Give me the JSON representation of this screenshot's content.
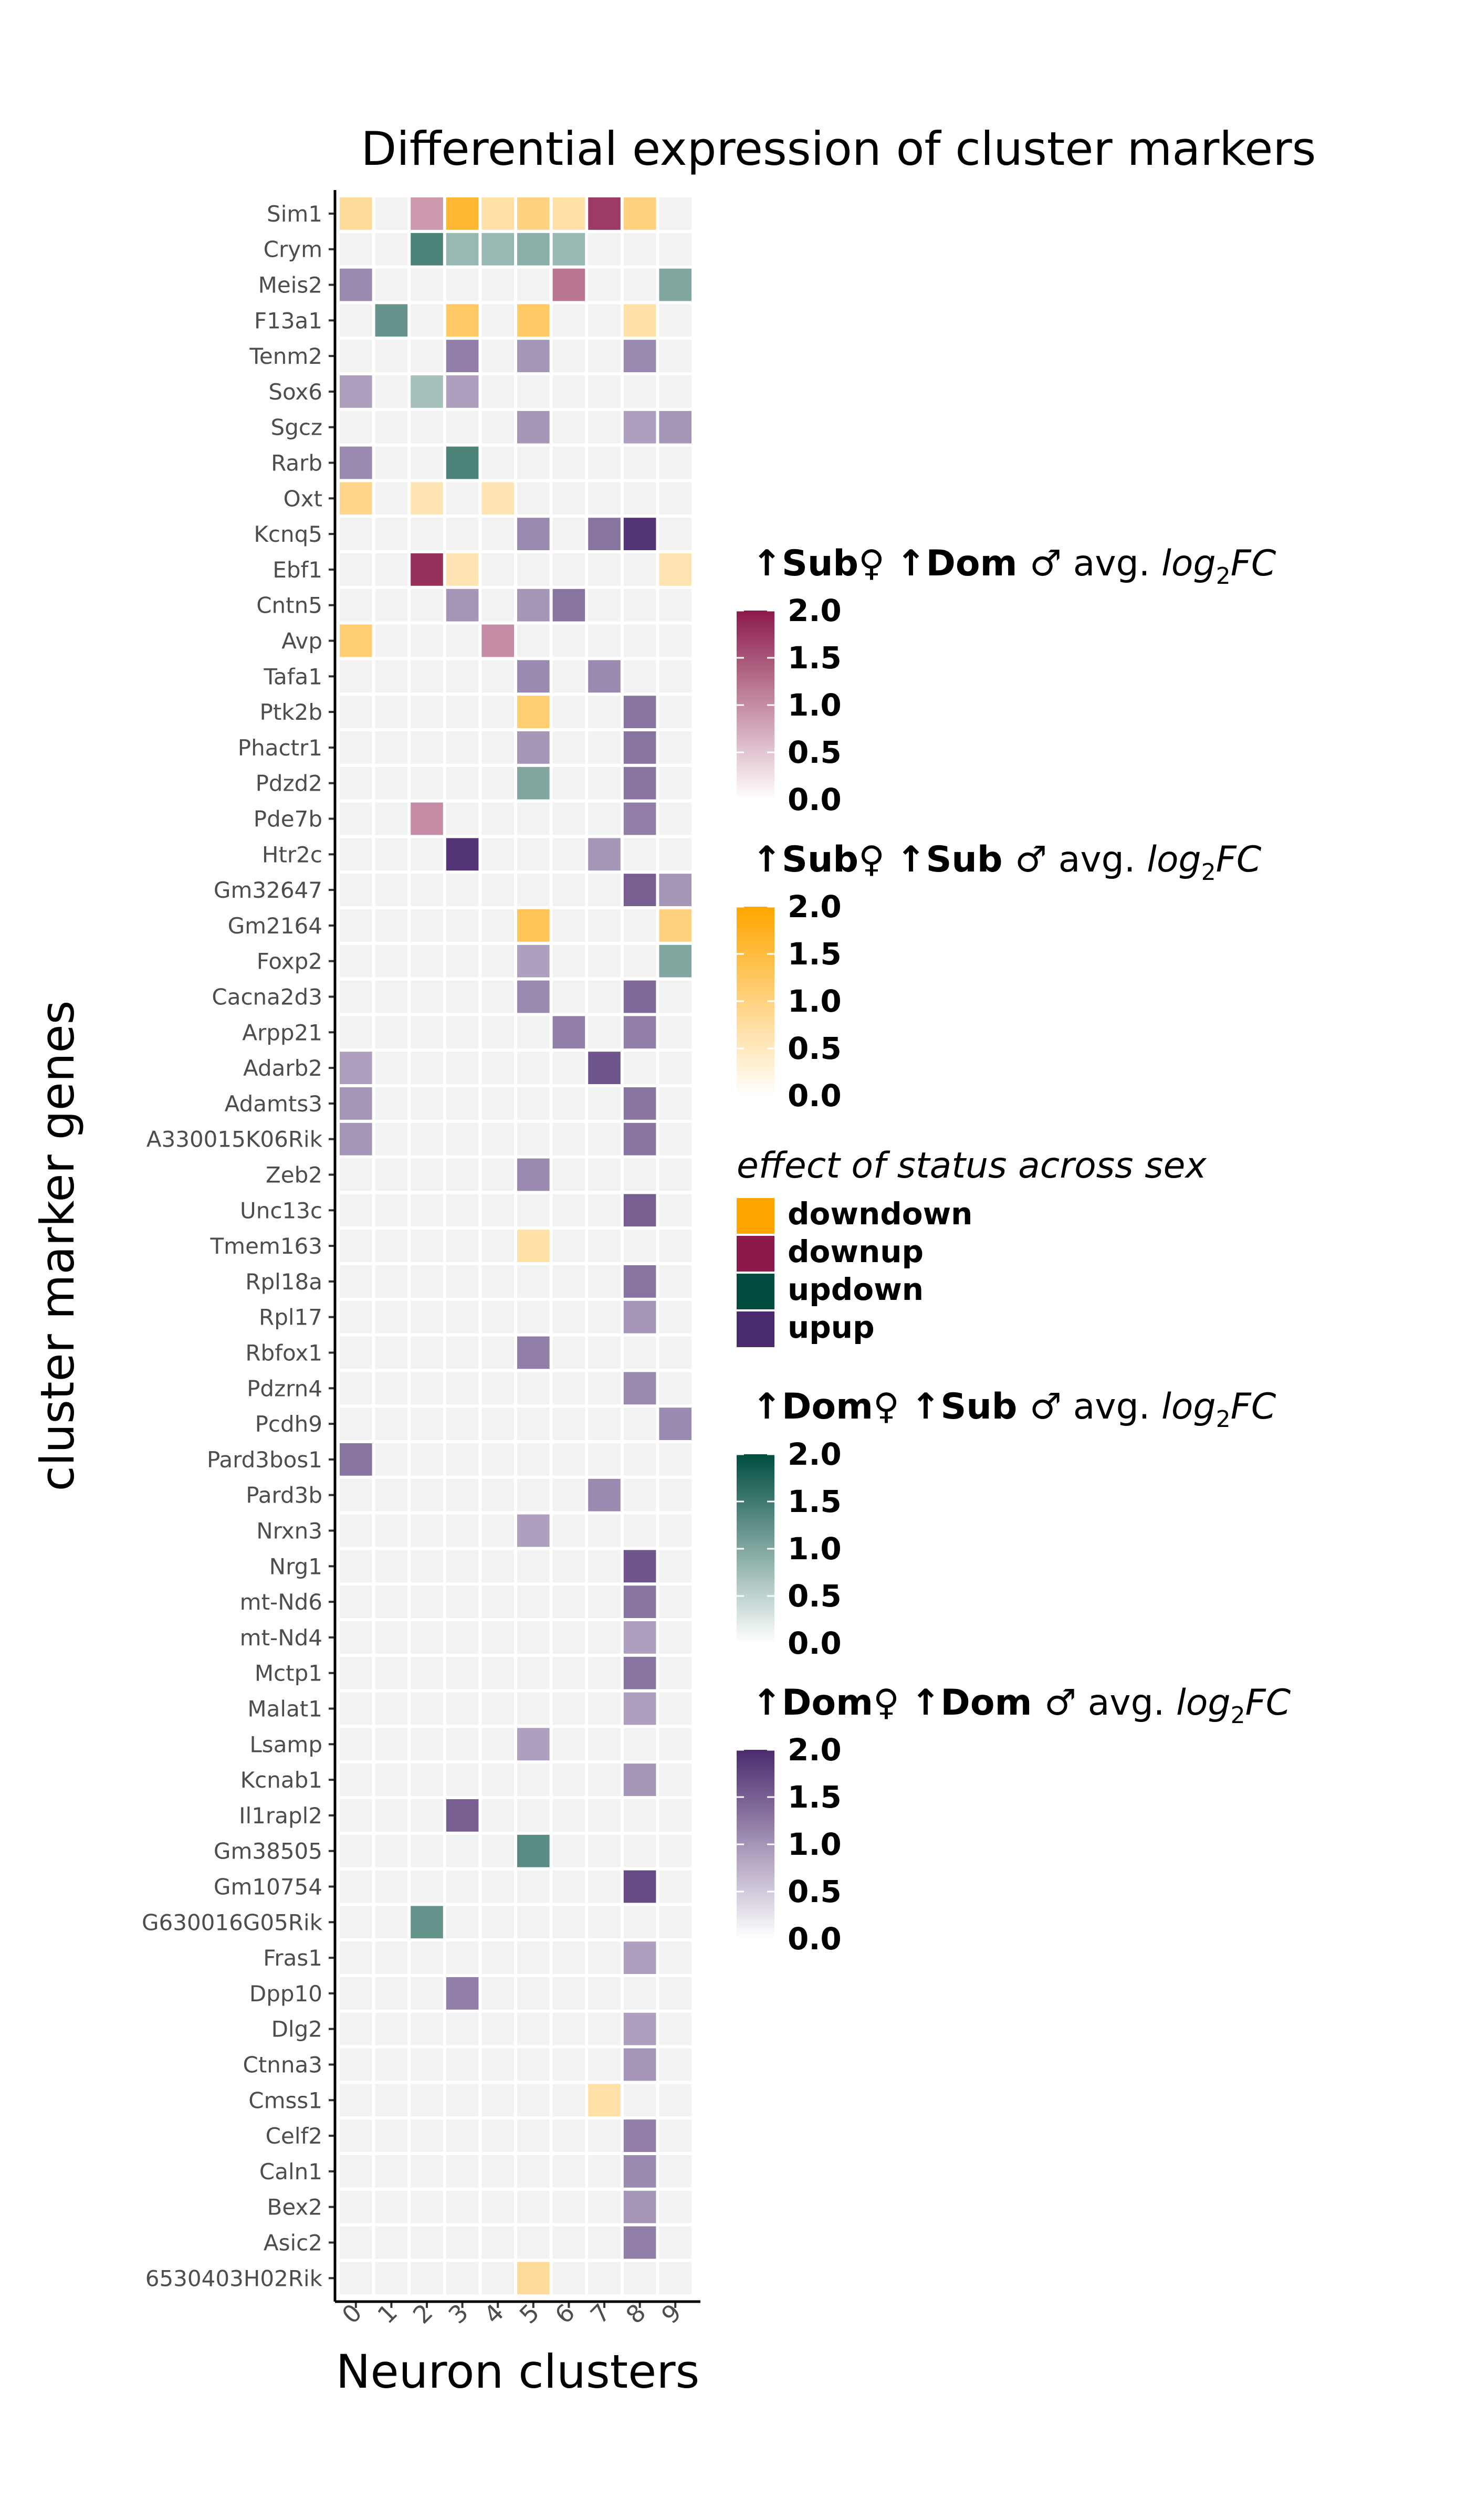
{
  "chart_data": {
    "type": "heatmap",
    "title": "Differential expression of cluster markers",
    "xlabel": "Neuron clusters",
    "ylabel": "cluster marker genes",
    "x_categories": [
      "0",
      "1",
      "2",
      "3",
      "4",
      "5",
      "6",
      "7",
      "8",
      "9"
    ],
    "genes": [
      "Sim1",
      "Crym",
      "Meis2",
      "F13a1",
      "Tenm2",
      "Sox6",
      "Sgcz",
      "Rarb",
      "Oxt",
      "Kcnq5",
      "Ebf1",
      "Cntn5",
      "Avp",
      "Tafa1",
      "Ptk2b",
      "Phactr1",
      "Pdzd2",
      "Pde7b",
      "Htr2c",
      "Gm32647",
      "Gm2164",
      "Foxp2",
      "Cacna2d3",
      "Arpp21",
      "Adarb2",
      "Adamts3",
      "A330015K06Rik",
      "Zeb2",
      "Unc13c",
      "Tmem163",
      "Rpl18a",
      "Rpl17",
      "Rbfox1",
      "Pdzrn4",
      "Pcdh9",
      "Pard3bos1",
      "Pard3b",
      "Nrxn3",
      "Nrg1",
      "mt-Nd6",
      "mt-Nd4",
      "Mctp1",
      "Malat1",
      "Lsamp",
      "Kcnab1",
      "Il1rapl2",
      "Gm38505",
      "Gm10754",
      "G630016G05Rik",
      "Fras1",
      "Dpp10",
      "Dlg2",
      "Ctnna3",
      "Cmss1",
      "Celf2",
      "Caln1",
      "Bex2",
      "Asic2",
      "6530403H02Rik"
    ],
    "background_color": "#f2f2f2",
    "categories": {
      "downup": {
        "color": "#8b1a4a"
      },
      "downdown": {
        "color": "#ffa500"
      },
      "updown": {
        "color": "#004d40"
      },
      "upup": {
        "color": "#4a2a6e"
      }
    },
    "cells": [
      {
        "gene": "Sim1",
        "cluster": "0",
        "effect": "downdown",
        "log2fc": 0.8
      },
      {
        "gene": "Sim1",
        "cluster": "2",
        "effect": "downup",
        "log2fc": 0.9
      },
      {
        "gene": "Sim1",
        "cluster": "3",
        "effect": "downdown",
        "log2fc": 1.6
      },
      {
        "gene": "Sim1",
        "cluster": "4",
        "effect": "downdown",
        "log2fc": 0.7
      },
      {
        "gene": "Sim1",
        "cluster": "5",
        "effect": "downdown",
        "log2fc": 1.0
      },
      {
        "gene": "Sim1",
        "cluster": "6",
        "effect": "downdown",
        "log2fc": 0.7
      },
      {
        "gene": "Sim1",
        "cluster": "7",
        "effect": "downup",
        "log2fc": 1.7
      },
      {
        "gene": "Sim1",
        "cluster": "8",
        "effect": "downdown",
        "log2fc": 1.0
      },
      {
        "gene": "Crym",
        "cluster": "2",
        "effect": "updown",
        "log2fc": 1.4
      },
      {
        "gene": "Crym",
        "cluster": "3",
        "effect": "updown",
        "log2fc": 0.8
      },
      {
        "gene": "Crym",
        "cluster": "4",
        "effect": "updown",
        "log2fc": 0.8
      },
      {
        "gene": "Crym",
        "cluster": "5",
        "effect": "updown",
        "log2fc": 0.9
      },
      {
        "gene": "Crym",
        "cluster": "6",
        "effect": "updown",
        "log2fc": 0.8
      },
      {
        "gene": "Meis2",
        "cluster": "0",
        "effect": "upup",
        "log2fc": 1.1
      },
      {
        "gene": "Meis2",
        "cluster": "6",
        "effect": "downup",
        "log2fc": 1.2
      },
      {
        "gene": "Meis2",
        "cluster": "9",
        "effect": "updown",
        "log2fc": 1.0
      },
      {
        "gene": "F13a1",
        "cluster": "1",
        "effect": "updown",
        "log2fc": 1.2
      },
      {
        "gene": "F13a1",
        "cluster": "3",
        "effect": "downdown",
        "log2fc": 1.2
      },
      {
        "gene": "F13a1",
        "cluster": "5",
        "effect": "downdown",
        "log2fc": 1.2
      },
      {
        "gene": "F13a1",
        "cluster": "8",
        "effect": "downdown",
        "log2fc": 0.7
      },
      {
        "gene": "Tenm2",
        "cluster": "3",
        "effect": "upup",
        "log2fc": 1.2
      },
      {
        "gene": "Tenm2",
        "cluster": "5",
        "effect": "upup",
        "log2fc": 1.0
      },
      {
        "gene": "Tenm2",
        "cluster": "8",
        "effect": "upup",
        "log2fc": 1.1
      },
      {
        "gene": "Sox6",
        "cluster": "0",
        "effect": "upup",
        "log2fc": 0.9
      },
      {
        "gene": "Sox6",
        "cluster": "2",
        "effect": "updown",
        "log2fc": 0.7
      },
      {
        "gene": "Sox6",
        "cluster": "3",
        "effect": "upup",
        "log2fc": 0.9
      },
      {
        "gene": "Sgcz",
        "cluster": "5",
        "effect": "upup",
        "log2fc": 1.0
      },
      {
        "gene": "Sgcz",
        "cluster": "8",
        "effect": "upup",
        "log2fc": 0.9
      },
      {
        "gene": "Sgcz",
        "cluster": "9",
        "effect": "upup",
        "log2fc": 1.0
      },
      {
        "gene": "Rarb",
        "cluster": "0",
        "effect": "upup",
        "log2fc": 1.1
      },
      {
        "gene": "Rarb",
        "cluster": "3",
        "effect": "updown",
        "log2fc": 1.4
      },
      {
        "gene": "Oxt",
        "cluster": "0",
        "effect": "downdown",
        "log2fc": 0.9
      },
      {
        "gene": "Oxt",
        "cluster": "2",
        "effect": "downdown",
        "log2fc": 0.6
      },
      {
        "gene": "Oxt",
        "cluster": "4",
        "effect": "downdown",
        "log2fc": 0.6
      },
      {
        "gene": "Kcnq5",
        "cluster": "5",
        "effect": "upup",
        "log2fc": 1.1
      },
      {
        "gene": "Kcnq5",
        "cluster": "7",
        "effect": "upup",
        "log2fc": 1.3
      },
      {
        "gene": "Kcnq5",
        "cluster": "8",
        "effect": "upup",
        "log2fc": 1.9
      },
      {
        "gene": "Ebf1",
        "cluster": "2",
        "effect": "downup",
        "log2fc": 1.8
      },
      {
        "gene": "Ebf1",
        "cluster": "3",
        "effect": "downdown",
        "log2fc": 0.6
      },
      {
        "gene": "Ebf1",
        "cluster": "9",
        "effect": "downdown",
        "log2fc": 0.6
      },
      {
        "gene": "Cntn5",
        "cluster": "3",
        "effect": "upup",
        "log2fc": 1.0
      },
      {
        "gene": "Cntn5",
        "cluster": "5",
        "effect": "upup",
        "log2fc": 1.0
      },
      {
        "gene": "Cntn5",
        "cluster": "6",
        "effect": "upup",
        "log2fc": 1.3
      },
      {
        "gene": "Avp",
        "cluster": "0",
        "effect": "downdown",
        "log2fc": 1.1
      },
      {
        "gene": "Avp",
        "cluster": "4",
        "effect": "downup",
        "log2fc": 1.0
      },
      {
        "gene": "Tafa1",
        "cluster": "5",
        "effect": "upup",
        "log2fc": 1.1
      },
      {
        "gene": "Tafa1",
        "cluster": "7",
        "effect": "upup",
        "log2fc": 1.1
      },
      {
        "gene": "Ptk2b",
        "cluster": "5",
        "effect": "downdown",
        "log2fc": 1.1
      },
      {
        "gene": "Ptk2b",
        "cluster": "8",
        "effect": "upup",
        "log2fc": 1.3
      },
      {
        "gene": "Phactr1",
        "cluster": "5",
        "effect": "upup",
        "log2fc": 1.0
      },
      {
        "gene": "Phactr1",
        "cluster": "8",
        "effect": "upup",
        "log2fc": 1.3
      },
      {
        "gene": "Pdzd2",
        "cluster": "5",
        "effect": "updown",
        "log2fc": 1.0
      },
      {
        "gene": "Pdzd2",
        "cluster": "8",
        "effect": "upup",
        "log2fc": 1.3
      },
      {
        "gene": "Pde7b",
        "cluster": "2",
        "effect": "downup",
        "log2fc": 1.0
      },
      {
        "gene": "Pde7b",
        "cluster": "8",
        "effect": "upup",
        "log2fc": 1.2
      },
      {
        "gene": "Htr2c",
        "cluster": "3",
        "effect": "upup",
        "log2fc": 1.9
      },
      {
        "gene": "Htr2c",
        "cluster": "7",
        "effect": "upup",
        "log2fc": 1.0
      },
      {
        "gene": "Gm32647",
        "cluster": "8",
        "effect": "upup",
        "log2fc": 1.5
      },
      {
        "gene": "Gm32647",
        "cluster": "9",
        "effect": "upup",
        "log2fc": 1.0
      },
      {
        "gene": "Gm2164",
        "cluster": "5",
        "effect": "downdown",
        "log2fc": 1.3
      },
      {
        "gene": "Gm2164",
        "cluster": "9",
        "effect": "downdown",
        "log2fc": 1.0
      },
      {
        "gene": "Foxp2",
        "cluster": "5",
        "effect": "upup",
        "log2fc": 0.9
      },
      {
        "gene": "Foxp2",
        "cluster": "9",
        "effect": "updown",
        "log2fc": 1.0
      },
      {
        "gene": "Cacna2d3",
        "cluster": "5",
        "effect": "upup",
        "log2fc": 1.1
      },
      {
        "gene": "Cacna2d3",
        "cluster": "8",
        "effect": "upup",
        "log2fc": 1.4
      },
      {
        "gene": "Arpp21",
        "cluster": "6",
        "effect": "upup",
        "log2fc": 1.2
      },
      {
        "gene": "Arpp21",
        "cluster": "8",
        "effect": "upup",
        "log2fc": 1.2
      },
      {
        "gene": "Adarb2",
        "cluster": "0",
        "effect": "upup",
        "log2fc": 0.9
      },
      {
        "gene": "Adarb2",
        "cluster": "7",
        "effect": "upup",
        "log2fc": 1.6
      },
      {
        "gene": "Adamts3",
        "cluster": "0",
        "effect": "upup",
        "log2fc": 1.0
      },
      {
        "gene": "Adamts3",
        "cluster": "8",
        "effect": "upup",
        "log2fc": 1.3
      },
      {
        "gene": "A330015K06Rik",
        "cluster": "0",
        "effect": "upup",
        "log2fc": 1.0
      },
      {
        "gene": "A330015K06Rik",
        "cluster": "8",
        "effect": "upup",
        "log2fc": 1.3
      },
      {
        "gene": "Zeb2",
        "cluster": "5",
        "effect": "upup",
        "log2fc": 1.1
      },
      {
        "gene": "Unc13c",
        "cluster": "8",
        "effect": "upup",
        "log2fc": 1.5
      },
      {
        "gene": "Tmem163",
        "cluster": "5",
        "effect": "downdown",
        "log2fc": 0.7
      },
      {
        "gene": "Rpl18a",
        "cluster": "8",
        "effect": "upup",
        "log2fc": 1.3
      },
      {
        "gene": "Rpl17",
        "cluster": "8",
        "effect": "upup",
        "log2fc": 1.0
      },
      {
        "gene": "Rbfox1",
        "cluster": "5",
        "effect": "upup",
        "log2fc": 1.2
      },
      {
        "gene": "Pdzrn4",
        "cluster": "8",
        "effect": "upup",
        "log2fc": 1.1
      },
      {
        "gene": "Pcdh9",
        "cluster": "9",
        "effect": "upup",
        "log2fc": 1.1
      },
      {
        "gene": "Pard3bos1",
        "cluster": "0",
        "effect": "upup",
        "log2fc": 1.3
      },
      {
        "gene": "Pard3b",
        "cluster": "7",
        "effect": "upup",
        "log2fc": 1.1
      },
      {
        "gene": "Nrxn3",
        "cluster": "5",
        "effect": "upup",
        "log2fc": 0.9
      },
      {
        "gene": "Nrg1",
        "cluster": "8",
        "effect": "upup",
        "log2fc": 1.6
      },
      {
        "gene": "mt-Nd6",
        "cluster": "8",
        "effect": "upup",
        "log2fc": 1.3
      },
      {
        "gene": "mt-Nd4",
        "cluster": "8",
        "effect": "upup",
        "log2fc": 0.9
      },
      {
        "gene": "Mctp1",
        "cluster": "8",
        "effect": "upup",
        "log2fc": 1.3
      },
      {
        "gene": "Malat1",
        "cluster": "8",
        "effect": "upup",
        "log2fc": 0.9
      },
      {
        "gene": "Lsamp",
        "cluster": "5",
        "effect": "upup",
        "log2fc": 0.9
      },
      {
        "gene": "Kcnab1",
        "cluster": "8",
        "effect": "upup",
        "log2fc": 1.0
      },
      {
        "gene": "Il1rapl2",
        "cluster": "3",
        "effect": "upup",
        "log2fc": 1.5
      },
      {
        "gene": "Gm38505",
        "cluster": "5",
        "effect": "updown",
        "log2fc": 1.3
      },
      {
        "gene": "Gm10754",
        "cluster": "8",
        "effect": "upup",
        "log2fc": 1.7
      },
      {
        "gene": "G630016G05Rik",
        "cluster": "2",
        "effect": "updown",
        "log2fc": 1.2
      },
      {
        "gene": "Fras1",
        "cluster": "8",
        "effect": "upup",
        "log2fc": 0.9
      },
      {
        "gene": "Dpp10",
        "cluster": "3",
        "effect": "upup",
        "log2fc": 1.2
      },
      {
        "gene": "Dlg2",
        "cluster": "8",
        "effect": "upup",
        "log2fc": 0.9
      },
      {
        "gene": "Ctnna3",
        "cluster": "8",
        "effect": "upup",
        "log2fc": 1.0
      },
      {
        "gene": "Cmss1",
        "cluster": "7",
        "effect": "downdown",
        "log2fc": 0.7
      },
      {
        "gene": "Celf2",
        "cluster": "8",
        "effect": "upup",
        "log2fc": 1.2
      },
      {
        "gene": "Caln1",
        "cluster": "8",
        "effect": "upup",
        "log2fc": 1.1
      },
      {
        "gene": "Bex2",
        "cluster": "8",
        "effect": "upup",
        "log2fc": 1.0
      },
      {
        "gene": "Asic2",
        "cluster": "8",
        "effect": "upup",
        "log2fc": 1.2
      },
      {
        "gene": "6530403H02Rik",
        "cluster": "5",
        "effect": "downdown",
        "log2fc": 0.8
      }
    ],
    "legends": {
      "downup": {
        "title_f": "↑Sub♀",
        "title_m": "↑Dom ♂",
        "title_suffix": "avg. ",
        "title_math": "log",
        "title_sub": "2",
        "title_math2": "FC",
        "ticks": [
          "2.0",
          "1.5",
          "1.0",
          "0.5",
          "0.0"
        ],
        "range": [
          0,
          2
        ]
      },
      "downdown": {
        "title_f": "↑Sub♀",
        "title_m": "↑Sub ♂",
        "title_suffix": "avg. ",
        "title_math": "log",
        "title_sub": "2",
        "title_math2": "FC",
        "ticks": [
          "2.0",
          "1.5",
          "1.0",
          "0.5",
          "0.0"
        ],
        "range": [
          0,
          2
        ]
      },
      "updown": {
        "title_f": "↑Dom♀",
        "title_m": "↑Sub ♂",
        "title_suffix": "avg. ",
        "title_math": "log",
        "title_sub": "2",
        "title_math2": "FC",
        "ticks": [
          "2.0",
          "1.5",
          "1.0",
          "0.5",
          "0.0"
        ],
        "range": [
          0,
          2
        ]
      },
      "upup": {
        "title_f": "↑Dom♀",
        "title_m": "↑Dom ♂",
        "title_suffix": "avg. ",
        "title_math": "log",
        "title_sub": "2",
        "title_math2": "FC",
        "ticks": [
          "2.0",
          "1.5",
          "1.0",
          "0.5",
          "0.0"
        ],
        "range": [
          0,
          2
        ]
      }
    },
    "effect_legend": {
      "title": "effect of status across sex",
      "items": [
        "downdown",
        "downup",
        "updown",
        "upup"
      ]
    }
  }
}
